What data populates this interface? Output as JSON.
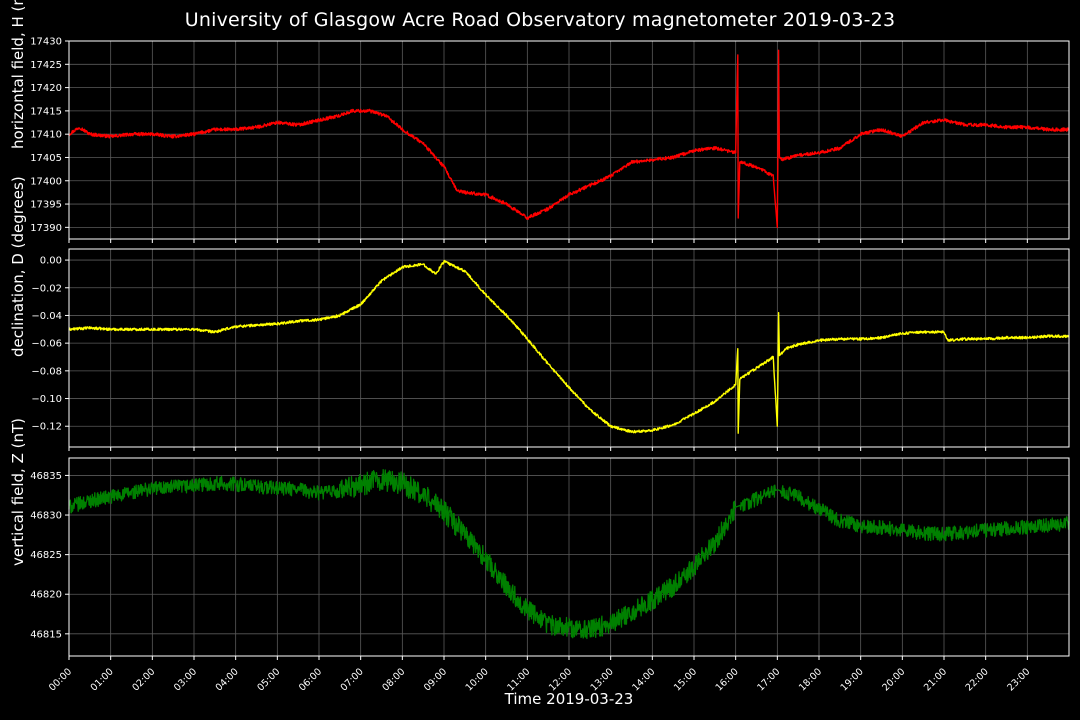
{
  "figure": {
    "title": "University of Glasgow Acre Road Observatory magnetometer 2019-03-23",
    "xlabel": "Time 2019-03-23",
    "background": "#000000",
    "foreground": "#ffffff",
    "grid_color": "#5a5a5a"
  },
  "chart_data": [
    {
      "type": "line",
      "ylabel": "horizontal field, H (nT)",
      "color": "#ff0000",
      "grid": true,
      "xlim": [
        0,
        24
      ],
      "ylim": [
        17387.5,
        17430
      ],
      "yticks": [
        17390,
        17395,
        17400,
        17405,
        17410,
        17415,
        17420,
        17425,
        17430
      ],
      "ytick_labels": [
        "17390",
        "17395",
        "17400",
        "17405",
        "17410",
        "17415",
        "17420",
        "17425",
        "17430"
      ],
      "x_hours": [
        0,
        0.25,
        0.5,
        1,
        1.5,
        2,
        2.5,
        3,
        3.5,
        4,
        4.5,
        5,
        5.5,
        6,
        6.5,
        6.8,
        7.2,
        7.6,
        8,
        8.5,
        9,
        9.3,
        9.5,
        10,
        10.5,
        11,
        11.5,
        12,
        12.5,
        13,
        13.5,
        14,
        14.5,
        15,
        15.5,
        16,
        16.05,
        16.06,
        16.1,
        16.5,
        16.9,
        17.0,
        17.03,
        17.05,
        17.1,
        17.5,
        18,
        18.5,
        19,
        19.5,
        20,
        20.5,
        21,
        21.5,
        22,
        22.5,
        23,
        23.5,
        24
      ],
      "y_values": [
        17410,
        17411.5,
        17410,
        17409.5,
        17410,
        17410,
        17409.5,
        17410,
        17411,
        17411,
        17411.5,
        17412.5,
        17412,
        17413,
        17414,
        17415,
        17415,
        17414,
        17411,
        17408,
        17403,
        17398,
        17397.5,
        17397,
        17395,
        17392,
        17394,
        17397,
        17399,
        17401,
        17404,
        17404.5,
        17405,
        17406.5,
        17407,
        17406,
        17427,
        17392,
        17404,
        17403,
        17401,
        17390,
        17428,
        17405,
        17404.5,
        17405.5,
        17406,
        17407,
        17410,
        17411,
        17409.5,
        17412.5,
        17413,
        17412,
        17412,
        17411.5,
        17411.5,
        17411,
        17411
      ]
    },
    {
      "type": "line",
      "ylabel": "declination, D (degrees)",
      "color": "#ffff00",
      "grid": true,
      "xlim": [
        0,
        24
      ],
      "ylim": [
        -0.135,
        0.008
      ],
      "yticks": [
        -0.12,
        -0.1,
        -0.08,
        -0.06,
        -0.04,
        -0.02,
        0.0
      ],
      "ytick_labels": [
        "−0.12",
        "−0.10",
        "−0.08",
        "−0.06",
        "−0.04",
        "−0.02",
        "0.00"
      ],
      "x_hours": [
        0,
        0.5,
        1,
        2,
        3,
        3.5,
        4,
        4.5,
        5,
        5.5,
        6,
        6.5,
        7,
        7.5,
        8,
        8.5,
        8.8,
        9,
        9.5,
        10,
        10.5,
        11,
        11.5,
        12,
        12.5,
        13,
        13.5,
        14,
        14.5,
        15,
        15.5,
        16,
        16.05,
        16.06,
        16.1,
        16.5,
        16.9,
        17.0,
        17.03,
        17.05,
        17.2,
        17.5,
        18,
        18.5,
        19,
        19.5,
        20,
        20.5,
        21,
        21.1,
        21.5,
        22,
        22.5,
        23,
        23.5,
        24
      ],
      "y_values": [
        -0.05,
        -0.049,
        -0.05,
        -0.05,
        -0.05,
        -0.052,
        -0.048,
        -0.047,
        -0.046,
        -0.044,
        -0.043,
        -0.04,
        -0.032,
        -0.015,
        -0.005,
        -0.003,
        -0.01,
        -0.001,
        -0.008,
        -0.025,
        -0.04,
        -0.057,
        -0.075,
        -0.092,
        -0.108,
        -0.12,
        -0.124,
        -0.123,
        -0.119,
        -0.111,
        -0.102,
        -0.09,
        -0.064,
        -0.125,
        -0.086,
        -0.078,
        -0.07,
        -0.12,
        -0.038,
        -0.069,
        -0.064,
        -0.061,
        -0.058,
        -0.057,
        -0.057,
        -0.056,
        -0.053,
        -0.052,
        -0.052,
        -0.058,
        -0.057,
        -0.057,
        -0.056,
        -0.056,
        -0.055,
        -0.055
      ]
    },
    {
      "type": "line",
      "ylabel": "vertical field, Z (nT)",
      "color": "#008000",
      "grid": true,
      "xlim": [
        0,
        24
      ],
      "ylim": [
        46812.2,
        46837.2
      ],
      "yticks": [
        46815,
        46820,
        46825,
        46830,
        46835
      ],
      "ytick_labels": [
        "46815",
        "46820",
        "46825",
        "46830",
        "46835"
      ],
      "x_hours": [
        0,
        0.5,
        1,
        1.5,
        2,
        2.5,
        3,
        3.5,
        4,
        4.5,
        5,
        5.5,
        6,
        6.5,
        7,
        7.5,
        8,
        8.5,
        9,
        9.5,
        10,
        10.5,
        11,
        11.5,
        12,
        12.5,
        13,
        13.5,
        14,
        14.5,
        15,
        15.5,
        16,
        16.5,
        17,
        17.5,
        18,
        18.5,
        19,
        19.5,
        20,
        20.5,
        21,
        21.5,
        22,
        22.5,
        23,
        23.5,
        24
      ],
      "y_values": [
        46831,
        46831.8,
        46832.3,
        46832.8,
        46833.4,
        46833.5,
        46833.7,
        46834,
        46833.9,
        46833.6,
        46833.4,
        46833.2,
        46832.8,
        46833,
        46833.8,
        46834.5,
        46834,
        46832.5,
        46830.5,
        46827.5,
        46824.5,
        46821,
        46818,
        46816.2,
        46815.8,
        46815.5,
        46816.3,
        46817.8,
        46819.3,
        46821,
        46823.5,
        46826.5,
        46831,
        46832,
        46833.2,
        46832.3,
        46830.8,
        46829.3,
        46828.6,
        46828.4,
        46828.1,
        46827.7,
        46827.6,
        46827.8,
        46828.1,
        46828.3,
        46828.5,
        46828.7,
        46829
      ]
    }
  ],
  "x_axis": {
    "range_hours": [
      0,
      24
    ],
    "tick_labels": [
      "00:00",
      "01:00",
      "02:00",
      "03:00",
      "04:00",
      "05:00",
      "06:00",
      "07:00",
      "08:00",
      "09:00",
      "10:00",
      "11:00",
      "12:00",
      "13:00",
      "14:00",
      "15:00",
      "16:00",
      "17:00",
      "18:00",
      "19:00",
      "20:00",
      "21:00",
      "22:00",
      "23:00"
    ]
  }
}
